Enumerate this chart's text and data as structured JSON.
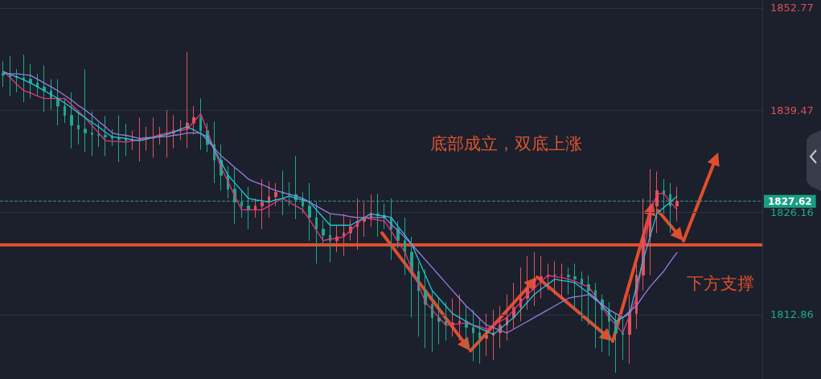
{
  "chart_data": {
    "type": "candlestick",
    "annotations": [
      "底部成立，双底上涨"
    ],
    "categories": [
      null,
      null,
      null,
      null,
      null,
      null,
      null,
      null,
      null,
      null,
      null,
      null,
      null,
      null,
      null,
      null,
      null,
      null,
      null,
      null,
      null,
      null,
      null,
      null,
      null,
      null,
      null,
      null,
      null,
      null,
      null,
      null,
      null,
      null,
      null,
      null,
      null,
      null,
      null,
      null,
      null,
      null,
      null,
      null,
      null,
      null,
      null,
      null,
      null,
      null,
      null,
      null,
      null,
      null,
      null,
      null,
      null,
      null,
      null,
      null,
      null,
      null,
      null,
      null,
      null,
      null,
      null,
      null,
      null,
      null,
      null,
      null,
      null,
      null,
      null,
      null,
      null,
      null,
      null,
      null,
      null,
      null,
      null,
      null,
      null,
      null,
      null,
      null,
      null,
      null,
      null,
      null,
      null,
      null,
      null,
      null,
      null,
      null,
      null,
      null
    ],
    "ohlc": [
      [
        1844.3,
        1845.8,
        1842.5,
        1844.0
      ],
      [
        1844.0,
        1846.5,
        1841.3,
        1843.8
      ],
      [
        1843.8,
        1844.8,
        1841.8,
        1843.7
      ],
      [
        1843.7,
        1846.7,
        1840.5,
        1843.5
      ],
      [
        1843.5,
        1845.5,
        1841.0,
        1843.0
      ],
      [
        1843.0,
        1844.2,
        1841.3,
        1842.5
      ],
      [
        1842.5,
        1845.3,
        1839.2,
        1842.0
      ],
      [
        1842.0,
        1843.5,
        1839.5,
        1841.0
      ],
      [
        1841.0,
        1843.5,
        1837.5,
        1840.0
      ],
      [
        1840.0,
        1841.0,
        1837.8,
        1838.8
      ],
      [
        1838.8,
        1841.8,
        1834.5,
        1837.5
      ],
      [
        1837.5,
        1839.5,
        1835.0,
        1837.0
      ],
      [
        1837.0,
        1844.8,
        1834.0,
        1836.5
      ],
      [
        1836.5,
        1839.3,
        1833.5,
        1836.3
      ],
      [
        1836.3,
        1837.8,
        1834.7,
        1836.2
      ],
      [
        1836.2,
        1838.7,
        1833.5,
        1836.0
      ],
      [
        1836.0,
        1837.0,
        1834.8,
        1835.8
      ],
      [
        1835.8,
        1838.8,
        1832.7,
        1835.7
      ],
      [
        1835.7,
        1837.7,
        1833.5,
        1835.5
      ],
      [
        1835.5,
        1836.8,
        1834.3,
        1835.6
      ],
      [
        1835.6,
        1838.5,
        1832.8,
        1835.7
      ],
      [
        1835.7,
        1837.3,
        1834.2,
        1835.8
      ],
      [
        1835.8,
        1838.5,
        1833.3,
        1836.0
      ],
      [
        1836.0,
        1837.3,
        1835.0,
        1836.3
      ],
      [
        1836.3,
        1839.5,
        1833.3,
        1836.5
      ],
      [
        1836.5,
        1838.8,
        1834.5,
        1836.8
      ],
      [
        1836.8,
        1838.2,
        1835.6,
        1837.0
      ],
      [
        1837.0,
        1847.0,
        1834.5,
        1837.8
      ],
      [
        1837.8,
        1840.0,
        1836.3,
        1838.5
      ],
      [
        1838.5,
        1841.0,
        1834.3,
        1836.8
      ],
      [
        1836.8,
        1837.8,
        1834.0,
        1835.0
      ],
      [
        1835.0,
        1838.0,
        1830.0,
        1833.0
      ],
      [
        1833.0,
        1835.0,
        1829.0,
        1831.0
      ],
      [
        1831.0,
        1832.2,
        1828.0,
        1829.2
      ],
      [
        1829.2,
        1832.0,
        1824.7,
        1827.5
      ],
      [
        1827.5,
        1829.0,
        1825.5,
        1827.0
      ],
      [
        1827.0,
        1829.5,
        1824.0,
        1826.5
      ],
      [
        1826.5,
        1828.0,
        1825.5,
        1827.0
      ],
      [
        1827.0,
        1830.5,
        1824.0,
        1827.5
      ],
      [
        1827.5,
        1830.2,
        1825.5,
        1828.2
      ],
      [
        1828.2,
        1830.0,
        1827.0,
        1828.8
      ],
      [
        1828.8,
        1831.6,
        1825.8,
        1828.6
      ],
      [
        1828.6,
        1830.1,
        1827.0,
        1828.5
      ],
      [
        1828.5,
        1833.5,
        1825.3,
        1827.8
      ],
      [
        1827.8,
        1828.8,
        1826.0,
        1827.0
      ],
      [
        1827.0,
        1830.0,
        1822.5,
        1825.5
      ],
      [
        1825.5,
        1827.5,
        1819.5,
        1824.0
      ],
      [
        1824.0,
        1825.2,
        1822.0,
        1823.2
      ],
      [
        1823.2,
        1826.0,
        1819.7,
        1822.5
      ],
      [
        1822.5,
        1824.5,
        1821.0,
        1823.0
      ],
      [
        1823.0,
        1826.0,
        1820.5,
        1823.5
      ],
      [
        1823.5,
        1825.3,
        1822.5,
        1824.3
      ],
      [
        1824.3,
        1828.0,
        1821.3,
        1825.0
      ],
      [
        1825.0,
        1827.5,
        1823.0,
        1825.5
      ],
      [
        1825.5,
        1828.5,
        1824.3,
        1826.0
      ],
      [
        1826.0,
        1828.6,
        1823.0,
        1825.8
      ],
      [
        1825.8,
        1827.3,
        1824.0,
        1825.5
      ],
      [
        1825.5,
        1828.0,
        1820.0,
        1824.0
      ],
      [
        1824.0,
        1825.0,
        1821.5,
        1822.5
      ],
      [
        1822.5,
        1825.5,
        1818.0,
        1821.0
      ],
      [
        1821.0,
        1823.0,
        1812.5,
        1818.5
      ],
      [
        1818.5,
        1819.7,
        1810.0,
        1816.0
      ],
      [
        1816.0,
        1818.8,
        1808.5,
        1814.2
      ],
      [
        1814.2,
        1816.0,
        1808.0,
        1812.5
      ],
      [
        1812.5,
        1815.0,
        1809.0,
        1812.0
      ],
      [
        1812.0,
        1814.5,
        1809.5,
        1811.5
      ],
      [
        1811.5,
        1815.0,
        1810.0,
        1811.8
      ],
      [
        1811.8,
        1815.5,
        1809.5,
        1812.0
      ],
      [
        1812.0,
        1814.0,
        1808.5,
        1811.2
      ],
      [
        1811.2,
        1813.5,
        1806.8,
        1810.5
      ],
      [
        1810.5,
        1812.5,
        1806.5,
        1809.8
      ],
      [
        1809.8,
        1813.0,
        1807.5,
        1810.2
      ],
      [
        1810.2,
        1813.5,
        1807.0,
        1810.5
      ],
      [
        1810.5,
        1814.0,
        1808.5,
        1811.5
      ],
      [
        1811.5,
        1815.5,
        1809.5,
        1812.5
      ],
      [
        1812.5,
        1817.0,
        1811.0,
        1813.8
      ],
      [
        1813.8,
        1819.0,
        1812.0,
        1815.0
      ],
      [
        1815.0,
        1820.5,
        1813.5,
        1816.3
      ],
      [
        1816.3,
        1821.0,
        1814.0,
        1817.5
      ],
      [
        1817.5,
        1820.5,
        1815.0,
        1817.8
      ],
      [
        1817.8,
        1819.5,
        1816.0,
        1818.0
      ],
      [
        1818.0,
        1819.8,
        1815.5,
        1818.0
      ],
      [
        1818.0,
        1819.5,
        1814.8,
        1818.0
      ],
      [
        1818.0,
        1819.0,
        1815.5,
        1817.8
      ],
      [
        1817.8,
        1819.5,
        1813.5,
        1817.5
      ],
      [
        1817.5,
        1818.5,
        1812.0,
        1816.8
      ],
      [
        1816.8,
        1818.0,
        1811.5,
        1816.0
      ],
      [
        1816.0,
        1817.0,
        1808.5,
        1814.8
      ],
      [
        1814.8,
        1815.5,
        1808.0,
        1813.5
      ],
      [
        1813.5,
        1814.5,
        1807.5,
        1812.0
      ],
      [
        1812.0,
        1813.0,
        1805.3,
        1810.5
      ],
      [
        1810.5,
        1812.5,
        1807.0,
        1810.3
      ],
      [
        1810.3,
        1815.5,
        1806.5,
        1813.0
      ],
      [
        1813.0,
        1819.5,
        1811.0,
        1818.0
      ],
      [
        1818.0,
        1828.0,
        1816.0,
        1823.0
      ],
      [
        1823.0,
        1831.8,
        1818.0,
        1827.0
      ],
      [
        1827.0,
        1831.5,
        1823.5,
        1829.0
      ],
      [
        1829.0,
        1830.5,
        1826.0,
        1828.5
      ],
      [
        1828.5,
        1830.0,
        1823.5,
        1827.0
      ],
      [
        1827.0,
        1829.5,
        1825.0,
        1827.6
      ]
    ],
    "colors": [
      "#1fa88a",
      "#1fa88a",
      "#1fa88a",
      "#1fa88a",
      "#1fa88a",
      "#1fa88a",
      "#1fa88a",
      "#1fa88a",
      "#1fa88a",
      "#1fa88a",
      "#1fa88a",
      "#1fa88a",
      "#1fa88a",
      "#1fa88a",
      "#1fa88a",
      "#1fa88a",
      "#1fa88a",
      "#1fa88a",
      "#1fa88a",
      "#e0535b",
      "#e0535b",
      "#e0535b",
      "#e0535b",
      "#e0535b",
      "#e0535b",
      "#e0535b",
      "#e0535b",
      "#e0535b",
      "#e0535b",
      "#1fa88a",
      "#1fa88a",
      "#1fa88a",
      "#1fa88a",
      "#1fa88a",
      "#1fa88a",
      "#1fa88a",
      "#1fa88a",
      "#e0535b",
      "#e0535b",
      "#e0535b",
      "#e0535b",
      "#1fa88a",
      "#1fa88a",
      "#1fa88a",
      "#1fa88a",
      "#1fa88a",
      "#1fa88a",
      "#1fa88a",
      "#1fa88a",
      "#e0535b",
      "#e0535b",
      "#e0535b",
      "#e0535b",
      "#e0535b",
      "#e0535b",
      "#1fa88a",
      "#1fa88a",
      "#1fa88a",
      "#1fa88a",
      "#1fa88a",
      "#1fa88a",
      "#1fa88a",
      "#1fa88a",
      "#1fa88a",
      "#1fa88a",
      "#1fa88a",
      "#e0535b",
      "#e0535b",
      "#1fa88a",
      "#1fa88a",
      "#1fa88a",
      "#e0535b",
      "#e0535b",
      "#e0535b",
      "#e0535b",
      "#e0535b",
      "#e0535b",
      "#e0535b",
      "#e0535b",
      "#e0535b",
      "#e0535b",
      "#e0535b",
      "#e0535b",
      "#1fa88a",
      "#1fa88a",
      "#1fa88a",
      "#1fa88a",
      "#1fa88a",
      "#1fa88a",
      "#1fa88a",
      "#1fa88a",
      "#1fa88a",
      "#e0535b",
      "#e0535b",
      "#e0535b",
      "#e0535b",
      "#e0535b",
      "#1fa88a",
      "#1fa88a",
      "#e0535b"
    ],
    "series": [
      {
        "type": "line",
        "color": "#e8347c",
        "values": [
          1844.5,
          1843.7,
          1842.8,
          1842.0,
          1841.7,
          1841.3,
          1841.0,
          1841.0,
          1841.0,
          1841.0,
          1840.2,
          1839.3,
          1838.5,
          1837.5,
          1836.5,
          1835.5,
          1835.4,
          1835.4,
          1835.3,
          1835.5,
          1835.6,
          1835.8,
          1836.0,
          1836.3,
          1836.5,
          1836.7,
          1836.8,
          1837.0,
          1838.0,
          1839.0,
          1836.7,
          1834.3,
          1832.0,
          1830.2,
          1828.3,
          1826.5,
          1826.5,
          1826.5,
          1826.5,
          1827.0,
          1827.5,
          1828.0,
          1827.5,
          1827.0,
          1826.5,
          1825.2,
          1823.8,
          1822.5,
          1822.7,
          1822.8,
          1823.0,
          1823.8,
          1824.7,
          1825.5,
          1825.3,
          1825.2,
          1825.0,
          1823.7,
          1822.3,
          1821.0,
          1818.8,
          1816.7,
          1814.5,
          1813.5,
          1812.5,
          1811.5,
          1811.6,
          1811.7,
          1811.8,
          1811.5,
          1811.3,
          1811.0,
          1811.5,
          1812.0,
          1812.5,
          1813.5,
          1814.5,
          1815.5,
          1816.3,
          1817.2,
          1818.0,
          1817.8,
          1817.7,
          1817.5,
          1817.2,
          1816.8,
          1816.5,
          1815.2,
          1813.8,
          1812.5,
          1811.5,
          1810.5,
          1812.8,
          1815.0,
          1820.5,
          1826.0,
          1828.5,
          1828.7,
          1827.5,
          1826.5
        ]
      },
      {
        "type": "line",
        "color": "#26c6da",
        "values": [
          1844.5,
          1844.1,
          1843.8,
          1843.4,
          1843.0,
          1842.5,
          1842.0,
          1841.5,
          1841.0,
          1840.4,
          1839.8,
          1839.1,
          1838.5,
          1837.9,
          1837.3,
          1836.6,
          1836.0,
          1835.9,
          1835.8,
          1835.6,
          1835.5,
          1835.7,
          1835.9,
          1836.1,
          1836.3,
          1836.6,
          1837.0,
          1837.3,
          1836.9,
          1836.4,
          1836.0,
          1834.3,
          1832.7,
          1831.0,
          1830.0,
          1829.0,
          1828.0,
          1827.8,
          1827.7,
          1827.5,
          1827.8,
          1828.0,
          1828.3,
          1828.0,
          1827.8,
          1827.5,
          1826.5,
          1825.5,
          1824.5,
          1824.5,
          1824.5,
          1824.5,
          1825.0,
          1825.5,
          1826.0,
          1825.8,
          1825.7,
          1825.5,
          1824.3,
          1823.2,
          1822.0,
          1820.0,
          1818.0,
          1816.0,
          1815.0,
          1814.0,
          1813.0,
          1812.5,
          1812.0,
          1811.5,
          1811.1,
          1810.7,
          1810.3,
          1811.0,
          1811.8,
          1812.5,
          1813.5,
          1814.5,
          1815.5,
          1816.2,
          1816.8,
          1817.5,
          1817.3,
          1817.2,
          1817.0,
          1816.3,
          1815.7,
          1815.0,
          1814.0,
          1813.0,
          1812.0,
          1812.5,
          1813.0,
          1816.5,
          1820.0,
          1823.0,
          1826.0,
          1826.8,
          1827.5,
          1828.3
        ]
      },
      {
        "type": "line",
        "color": "#9b7be0",
        "values": [
          1844.3,
          1844.2,
          1844.2,
          1844.1,
          1844.0,
          1843.5,
          1843.0,
          1842.5,
          1842.0,
          1841.4,
          1840.8,
          1840.1,
          1839.5,
          1838.8,
          1838.0,
          1837.3,
          1836.5,
          1836.3,
          1836.2,
          1836.0,
          1835.8,
          1835.9,
          1835.9,
          1836.0,
          1836.0,
          1836.2,
          1836.3,
          1836.5,
          1836.5,
          1836.5,
          1835.5,
          1834.5,
          1833.5,
          1832.8,
          1832.0,
          1831.3,
          1830.5,
          1830.1,
          1829.8,
          1829.4,
          1829.0,
          1828.8,
          1828.5,
          1828.3,
          1828.0,
          1827.5,
          1827.0,
          1826.5,
          1826.0,
          1825.9,
          1825.8,
          1825.6,
          1825.5,
          1825.5,
          1825.5,
          1825.5,
          1825.5,
          1824.6,
          1823.8,
          1822.9,
          1822.0,
          1821.0,
          1820.0,
          1819.0,
          1818.0,
          1817.0,
          1816.0,
          1815.0,
          1814.0,
          1813.2,
          1812.3,
          1811.5,
          1811.2,
          1810.8,
          1810.5,
          1811.0,
          1811.5,
          1812.0,
          1812.5,
          1813.0,
          1813.5,
          1814.0,
          1814.5,
          1815.0,
          1815.2,
          1815.3,
          1815.5,
          1814.8,
          1814.2,
          1813.5,
          1813.0,
          1812.5,
          1813.3,
          1814.0,
          1815.3,
          1816.5,
          1817.5,
          1818.5,
          1819.8,
          1821.0
        ]
      }
    ],
    "ylim": [
      1804.5,
      1853.8
    ],
    "yticks": [
      1852.77,
      1839.47,
      1826.16,
      1812.86
    ],
    "ref_lines": [
      {
        "axis": "y",
        "value": 1827.62,
        "label": "1827.62",
        "color": "#1b9e84",
        "line_style": "dashed"
      },
      {
        "axis": "y",
        "value": 1822,
        "label": "下方支撑",
        "color": "#e04e2e",
        "line_style": "solid"
      }
    ],
    "tick_labels": "y",
    "grid": "y"
  }
}
